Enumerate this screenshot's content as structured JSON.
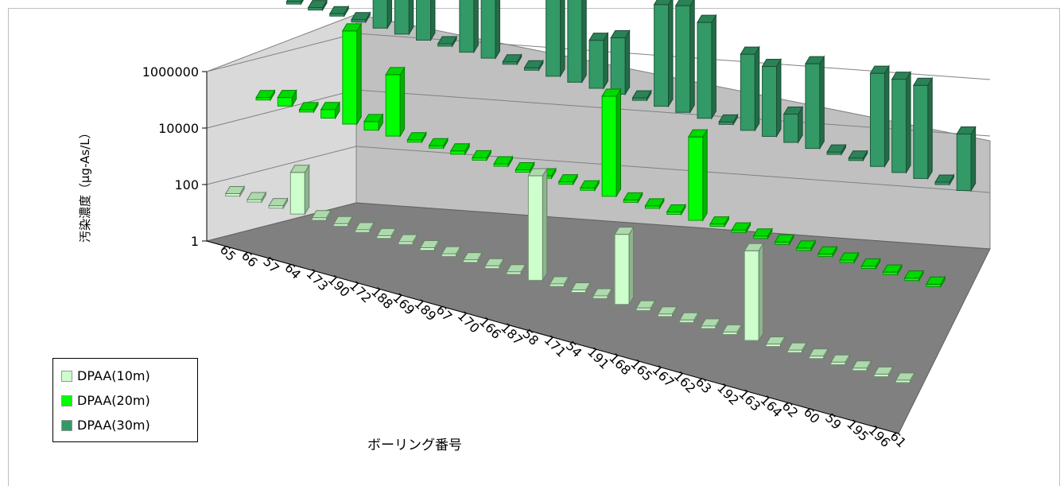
{
  "chart_data": {
    "type": "bar",
    "style": "3d-clustered",
    "xlabel": "ボーリング番号",
    "ylabel": "汚染濃度（μg-As/L）",
    "yscale": "log",
    "ylim": [
      1,
      1000000
    ],
    "yticks": [
      "1",
      "100",
      "10000",
      "1000000"
    ],
    "categories": [
      "65",
      "66",
      "57",
      "64",
      "173",
      "190",
      "172",
      "188",
      "169",
      "189",
      "67",
      "170",
      "166",
      "187",
      "58",
      "171",
      "54",
      "191",
      "168",
      "165",
      "167",
      "162",
      "63",
      "192",
      "163",
      "164",
      "62",
      "60",
      "59",
      "195",
      "196",
      "61"
    ],
    "series": [
      {
        "name": "DPAA(10m)",
        "color": "#ccffcc",
        "values": [
          1,
          1,
          1,
          30,
          1,
          1,
          1,
          1,
          1,
          1,
          1,
          1,
          1,
          1,
          5000,
          1,
          1,
          1,
          300,
          1,
          1,
          1,
          1,
          1,
          1500,
          1,
          1,
          1,
          1,
          1,
          1,
          1
        ]
      },
      {
        "name": "DPAA(20m)",
        "color": "#00ff00",
        "values": [
          1,
          2,
          1,
          2,
          2000,
          2,
          150,
          1,
          1,
          1.3,
          1,
          1,
          1,
          1,
          1,
          1,
          3500,
          1,
          1,
          1,
          900,
          1,
          1,
          1,
          1,
          1,
          1,
          1,
          1,
          1,
          1,
          1
        ]
      },
      {
        "name": "DPAA(30m)",
        "color": "#339966",
        "values": [
          1,
          1,
          1,
          1,
          10000,
          1000,
          20000,
          1,
          2000,
          2000,
          1,
          1,
          2000,
          3000,
          50,
          100,
          1,
          4000,
          6000,
          2500,
          1,
          500,
          300,
          10,
          1000,
          1,
          1,
          2000,
          2000,
          2000,
          1,
          100
        ]
      }
    ],
    "legend": "bottom-left",
    "grid": true
  }
}
